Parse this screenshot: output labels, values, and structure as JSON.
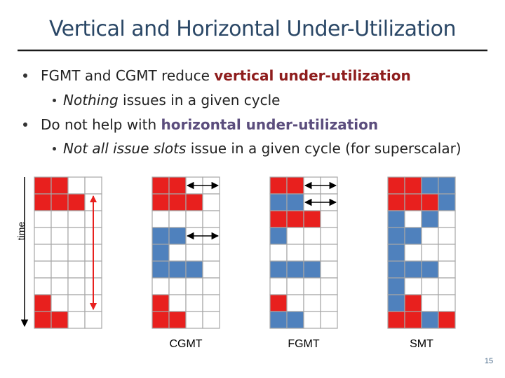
{
  "title": "Vertical and Horizontal Under-Utilization",
  "bullets": [
    {
      "parts": [
        "FGMT and CGMT reduce ",
        "vertical under-utilization"
      ],
      "sub": [
        "Nothing",
        " issues in a given cycle"
      ]
    },
    {
      "parts": [
        "Do not help with ",
        "horizontal under-utilization"
      ],
      "sub": [
        "Not all issue slots",
        " issue in a given cycle (for superscalar)"
      ]
    }
  ],
  "axis_label": "time",
  "grid_labels": [
    "CGMT",
    "FGMT",
    "SMT"
  ],
  "page_number": "15"
}
